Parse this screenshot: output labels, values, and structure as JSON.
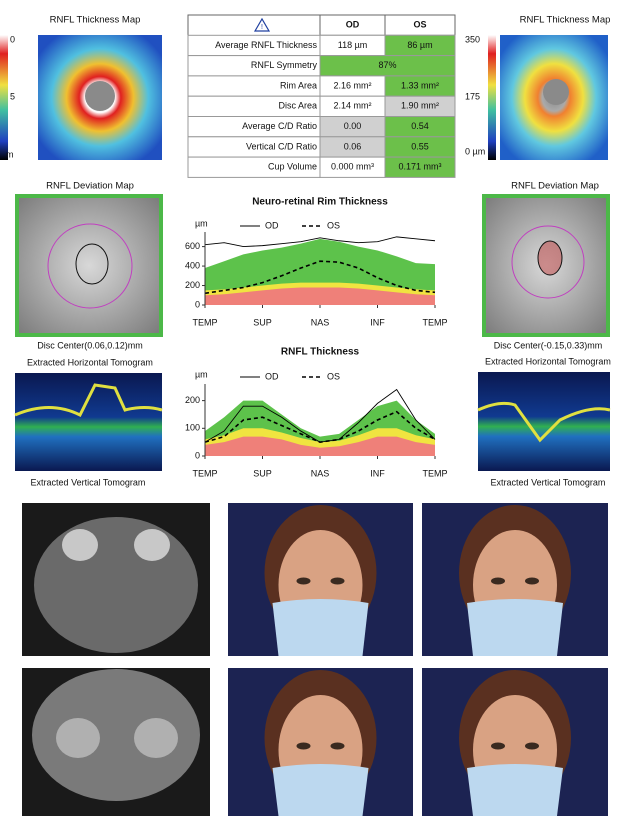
{
  "maps": {
    "left_title": "RNFL Thickness Map",
    "left_scale": [
      "0",
      "5",
      "m"
    ],
    "right_title": "RNFL Thickness Map",
    "right_scale": [
      "350",
      "175",
      "0 µm"
    ]
  },
  "table": {
    "header": [
      "OD",
      "OS"
    ],
    "rows": [
      [
        "Average RNFL Thickness",
        "118 µm",
        "86 µm"
      ],
      [
        "RNFL Symmetry",
        "87%"
      ],
      [
        "Rim Area",
        "2.16 mm²",
        "1.33 mm²"
      ],
      [
        "Disc Area",
        "2.14 mm²",
        "1.90 mm²"
      ],
      [
        "Average C/D Ratio",
        "0.00",
        "0.54"
      ],
      [
        "Vertical C/D Ratio",
        "0.06",
        "0.55"
      ],
      [
        "Cup Volume",
        "0.000 mm³",
        "0.171 mm³"
      ]
    ]
  },
  "deviation": {
    "left_title": "RNFL Deviation Map",
    "right_title": "RNFL Deviation Map",
    "left_center": "Disc Center(0.06,0.12)mm",
    "right_center": "Disc Center(-0.15,0.33)mm",
    "horizontal": [
      "Extracted Horizontal Tomogram",
      "Extracted Horizontal Tomogram"
    ],
    "vertical": [
      "Extracted Vertical Tomogram",
      "Extracted Vertical Tomogram"
    ]
  },
  "charts": [
    {
      "type": "line",
      "title": "Neuro-retinal Rim Thickness",
      "y_label": "µm",
      "x": [
        0,
        1,
        2,
        3,
        4,
        5,
        6,
        7,
        8,
        9,
        10,
        11,
        12
      ],
      "xlim": [
        0,
        12
      ],
      "xticks": [
        {
          "value": 0,
          "label": "TEMP"
        },
        {
          "value": 3,
          "label": "SUP"
        },
        {
          "value": 6,
          "label": "NAS"
        },
        {
          "value": 9,
          "label": "INF"
        },
        {
          "value": 12,
          "label": "TEMP"
        }
      ],
      "ylim": [
        0,
        750
      ],
      "yticks": [
        0,
        200,
        400,
        600
      ],
      "bands": [
        {
          "color": "#5dc24b",
          "values": [
            380,
            450,
            520,
            560,
            590,
            630,
            680,
            650,
            600,
            560,
            500,
            430,
            420
          ]
        },
        {
          "color": "#f0e440",
          "values": [
            150,
            160,
            180,
            200,
            220,
            230,
            230,
            230,
            220,
            200,
            180,
            160,
            150
          ]
        },
        {
          "color": "#ef8079",
          "values": [
            100,
            110,
            130,
            150,
            170,
            180,
            180,
            180,
            170,
            150,
            130,
            110,
            100
          ]
        }
      ],
      "series": [
        {
          "name": "OD",
          "color": "#000000",
          "dash": false,
          "values": [
            620,
            640,
            600,
            610,
            630,
            650,
            690,
            660,
            640,
            650,
            700,
            680,
            660
          ]
        },
        {
          "name": "OS",
          "color": "#000000",
          "dash": true,
          "values": [
            120,
            150,
            180,
            230,
            300,
            380,
            450,
            440,
            380,
            280,
            200,
            150,
            130
          ]
        }
      ]
    },
    {
      "type": "line",
      "title": "RNFL Thickness",
      "y_label": "µm",
      "x": [
        0,
        1,
        2,
        3,
        4,
        5,
        6,
        7,
        8,
        9,
        10,
        11,
        12
      ],
      "xlim": [
        0,
        12
      ],
      "xticks": [
        {
          "value": 0,
          "label": "TEMP"
        },
        {
          "value": 3,
          "label": "SUP"
        },
        {
          "value": 6,
          "label": "NAS"
        },
        {
          "value": 9,
          "label": "INF"
        },
        {
          "value": 12,
          "label": "TEMP"
        }
      ],
      "ylim": [
        0,
        260
      ],
      "yticks": [
        0,
        100,
        200
      ],
      "bands": [
        {
          "color": "#5dc24b",
          "values": [
            90,
            140,
            200,
            200,
            150,
            100,
            70,
            80,
            130,
            180,
            200,
            130,
            80
          ]
        },
        {
          "color": "#f0e440",
          "values": [
            60,
            75,
            100,
            100,
            85,
            65,
            50,
            55,
            75,
            100,
            100,
            75,
            60
          ]
        },
        {
          "color": "#ef8079",
          "values": [
            40,
            50,
            70,
            70,
            60,
            40,
            30,
            35,
            50,
            70,
            70,
            50,
            40
          ]
        }
      ],
      "series": [
        {
          "name": "OD",
          "color": "#000000",
          "dash": false,
          "values": [
            50,
            90,
            180,
            180,
            140,
            90,
            50,
            60,
            120,
            190,
            240,
            130,
            60
          ]
        },
        {
          "name": "OS",
          "color": "#000000",
          "dash": true,
          "values": [
            50,
            70,
            130,
            140,
            110,
            80,
            50,
            60,
            90,
            130,
            160,
            100,
            60
          ]
        }
      ]
    }
  ]
}
